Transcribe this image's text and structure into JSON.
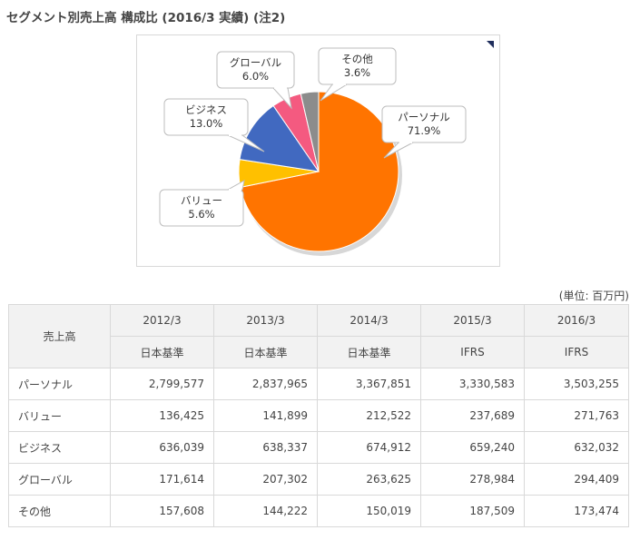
{
  "page": {
    "title": "セグメント別売上高 構成比 (2016/3 実績) (注2)",
    "unit": "(単位: 百万円)"
  },
  "chart_data": {
    "type": "pie",
    "slices": [
      {
        "label": "パーソナル",
        "value": 71.9,
        "display": "71.9%",
        "color": "#ff7400"
      },
      {
        "label": "バリュー",
        "value": 5.6,
        "display": "5.6%",
        "color": "#ffc000"
      },
      {
        "label": "ビジネス",
        "value": 13.0,
        "display": "13.0%",
        "color": "#4169c0"
      },
      {
        "label": "グローバル",
        "value": 6.0,
        "display": "6.0%",
        "color": "#f45a80"
      },
      {
        "label": "その他",
        "value": 3.6,
        "display": "3.6%",
        "color": "#8c8c8c"
      }
    ]
  },
  "table": {
    "corner": "売上高",
    "years": [
      "2012/3",
      "2013/3",
      "2014/3",
      "2015/3",
      "2016/3"
    ],
    "standards": [
      "日本基準",
      "日本基準",
      "日本基準",
      "IFRS",
      "IFRS"
    ],
    "rows": [
      {
        "label": "パーソナル",
        "values": [
          "2,799,577",
          "2,837,965",
          "3,367,851",
          "3,330,583",
          "3,503,255"
        ]
      },
      {
        "label": "バリュー",
        "values": [
          "136,425",
          "141,899",
          "212,522",
          "237,689",
          "271,763"
        ]
      },
      {
        "label": "ビジネス",
        "values": [
          "636,039",
          "638,337",
          "674,912",
          "659,240",
          "632,032"
        ]
      },
      {
        "label": "グローバル",
        "values": [
          "171,614",
          "207,302",
          "263,625",
          "278,984",
          "294,409"
        ]
      },
      {
        "label": "その他",
        "values": [
          "157,608",
          "144,222",
          "150,019",
          "187,509",
          "173,474"
        ]
      }
    ]
  }
}
